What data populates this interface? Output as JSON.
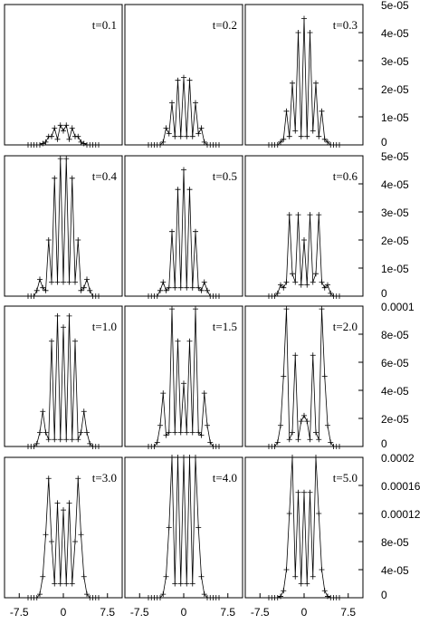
{
  "chart_data": [
    {
      "type": "line",
      "annotation": "t=0.1",
      "x": [
        -6,
        -5.5,
        -5,
        -4.5,
        -4,
        -3.5,
        -3,
        -2.5,
        -2,
        -1.5,
        -1,
        -0.5,
        0,
        0.5,
        1,
        1.5,
        2,
        2.5,
        3,
        3.5,
        4,
        4.5,
        5,
        5.5,
        6
      ],
      "values": [
        0,
        0,
        0,
        0,
        0,
        5e-07,
        1e-06,
        3e-06,
        3e-06,
        6e-06,
        2e-06,
        7e-06,
        5e-06,
        7e-06,
        2e-06,
        6e-06,
        3e-06,
        3e-06,
        1e-06,
        5e-07,
        0,
        0,
        0,
        0,
        0
      ],
      "xlim": [
        -10,
        10
      ],
      "ylim": [
        0,
        5e-05
      ]
    },
    {
      "type": "line",
      "annotation": "t=0.2",
      "x": [
        -6,
        -5.5,
        -5,
        -4.5,
        -4,
        -3.5,
        -3,
        -2.5,
        -2,
        -1.5,
        -1,
        -0.5,
        0,
        0.5,
        1,
        1.5,
        2,
        2.5,
        3,
        3.5,
        4,
        4.5,
        5,
        5.5,
        6
      ],
      "values": [
        0,
        0,
        0,
        0,
        0,
        1e-06,
        6e-06,
        4e-06,
        1.5e-05,
        3e-06,
        2.3e-05,
        3e-06,
        2.4e-05,
        3e-06,
        2.3e-05,
        3e-06,
        1.5e-05,
        4e-06,
        6e-06,
        1e-06,
        0,
        0,
        0,
        0,
        0
      ],
      "xlim": [
        -10,
        10
      ],
      "ylim": [
        0,
        5e-05
      ]
    },
    {
      "type": "line",
      "annotation": "t=0.3",
      "x": [
        -6,
        -5.5,
        -5,
        -4.5,
        -4,
        -3.5,
        -3,
        -2.5,
        -2,
        -1.5,
        -1,
        -0.5,
        0,
        0.5,
        1,
        1.5,
        2,
        2.5,
        3,
        3.5,
        4,
        4.5,
        5,
        5.5,
        6
      ],
      "values": [
        0,
        0,
        0,
        0,
        1e-06,
        2e-06,
        1.2e-05,
        3e-06,
        2.2e-05,
        5e-06,
        4e-05,
        3e-06,
        4.5e-05,
        3e-06,
        4e-05,
        5e-06,
        2.2e-05,
        3e-06,
        1.2e-05,
        2e-06,
        1e-06,
        0,
        0,
        0,
        0
      ],
      "xlim": [
        -10,
        10
      ],
      "ylim": [
        0,
        5e-05
      ],
      "yticks": [
        0,
        {
          "value": 1e-05,
          "label": "1e-05"
        },
        {
          "value": 2e-05,
          "label": "2e-05"
        },
        {
          "value": 3e-05,
          "label": "3e-05"
        },
        {
          "value": 4e-05,
          "label": "4e-05"
        },
        {
          "value": 5e-05,
          "label": "5e-05"
        }
      ]
    },
    {
      "type": "line",
      "annotation": "t=0.4",
      "x": [
        -6,
        -5.5,
        -5,
        -4.5,
        -4,
        -3.5,
        -3,
        -2.5,
        -2,
        -1.5,
        -1,
        -0.5,
        0,
        0.5,
        1,
        1.5,
        2,
        2.5,
        3,
        3.5,
        4,
        4.5,
        5,
        5.5,
        6
      ],
      "values": [
        0,
        0,
        0,
        2e-06,
        6e-06,
        3e-06,
        2e-06,
        2e-05,
        5e-06,
        4.2e-05,
        5e-06,
        4.9e-05,
        5e-06,
        4.9e-05,
        5e-06,
        4.2e-05,
        5e-06,
        2e-05,
        2e-06,
        3e-06,
        6e-06,
        2e-06,
        0,
        0,
        0
      ],
      "xlim": [
        -10,
        10
      ],
      "ylim": [
        0,
        5e-05
      ]
    },
    {
      "type": "line",
      "annotation": "t=0.5",
      "x": [
        -6,
        -5.5,
        -5,
        -4.5,
        -4,
        -3.5,
        -3,
        -2.5,
        -2,
        -1.5,
        -1,
        -0.5,
        0,
        0.5,
        1,
        1.5,
        2,
        2.5,
        3,
        3.5,
        4,
        4.5,
        5,
        5.5,
        6
      ],
      "values": [
        0,
        0,
        0,
        0,
        2e-06,
        5e-06,
        2e-06,
        3e-06,
        2.3e-05,
        3e-06,
        3.8e-05,
        3e-06,
        4.5e-05,
        3e-06,
        3.8e-05,
        3e-06,
        2.3e-05,
        3e-06,
        2e-06,
        5e-06,
        2e-06,
        0,
        0,
        0,
        0
      ],
      "xlim": [
        -10,
        10
      ],
      "ylim": [
        0,
        5e-05
      ]
    },
    {
      "type": "line",
      "annotation": "t=0.6",
      "x": [
        -6,
        -5.5,
        -5,
        -4.5,
        -4,
        -3.5,
        -3,
        -2.5,
        -2,
        -1.5,
        -1,
        -0.5,
        0,
        0.5,
        1,
        1.5,
        2,
        2.5,
        3,
        3.5,
        4,
        4.5,
        5,
        5.5,
        6
      ],
      "values": [
        0,
        0,
        0,
        1e-06,
        4e-06,
        3e-06,
        5e-06,
        2.9e-05,
        8e-06,
        5e-06,
        2.9e-05,
        4e-06,
        2e-05,
        4e-06,
        2.9e-05,
        5e-06,
        8e-06,
        2.9e-05,
        5e-06,
        3e-06,
        4e-06,
        1e-06,
        0,
        0,
        0
      ],
      "xlim": [
        -10,
        10
      ],
      "ylim": [
        0,
        5e-05
      ],
      "yticks": [
        0,
        {
          "value": 1e-05,
          "label": "1e-05"
        },
        {
          "value": 2e-05,
          "label": "2e-05"
        },
        {
          "value": 3e-05,
          "label": "3e-05"
        },
        {
          "value": 4e-05,
          "label": "4e-05"
        },
        {
          "value": 5e-05,
          "label": "5e-05"
        }
      ]
    },
    {
      "type": "line",
      "annotation": "t=1.0",
      "x": [
        -6,
        -5.5,
        -5,
        -4.5,
        -4,
        -3.5,
        -3,
        -2.5,
        -2,
        -1.5,
        -1,
        -0.5,
        0,
        0.5,
        1,
        1.5,
        2,
        2.5,
        3,
        3.5,
        4,
        4.5,
        5,
        5.5,
        6
      ],
      "values": [
        0,
        0,
        0,
        2e-06,
        1e-05,
        2.5e-05,
        1e-05,
        5e-06,
        7.5e-05,
        5e-06,
        9.3e-05,
        5e-06,
        8.5e-05,
        5e-06,
        9.3e-05,
        5e-06,
        7.5e-05,
        5e-06,
        1e-05,
        2.5e-05,
        1e-05,
        2e-06,
        0,
        0,
        0
      ],
      "xlim": [
        -10,
        10
      ],
      "ylim": [
        0,
        0.0001
      ]
    },
    {
      "type": "line",
      "annotation": "t=1.5",
      "x": [
        -6,
        -5.5,
        -5,
        -4.5,
        -4,
        -3.5,
        -3,
        -2.5,
        -2,
        -1.5,
        -1,
        -0.5,
        0,
        0.5,
        1,
        1.5,
        2,
        2.5,
        3,
        3.5,
        4,
        4.5,
        5,
        5.5,
        6
      ],
      "values": [
        0,
        0,
        0,
        3e-06,
        1.5e-05,
        3.8e-05,
        8e-06,
        1e-05,
        9.8e-05,
        1e-05,
        7.5e-05,
        1e-05,
        4.5e-05,
        1e-05,
        7.5e-05,
        1e-05,
        9.8e-05,
        1e-05,
        8e-06,
        3.8e-05,
        1.5e-05,
        3e-06,
        0,
        0,
        0
      ],
      "xlim": [
        -10,
        10
      ],
      "ylim": [
        0,
        0.0001
      ]
    },
    {
      "type": "line",
      "annotation": "t=2.0",
      "x": [
        -6,
        -5.5,
        -5,
        -4.5,
        -4,
        -3.5,
        -3,
        -2.5,
        -2,
        -1.5,
        -1,
        -0.5,
        0,
        0.5,
        1,
        1.5,
        2,
        2.5,
        3,
        3.5,
        4,
        4.5,
        5,
        5.5,
        6
      ],
      "values": [
        0,
        0,
        0,
        3e-06,
        1.5e-05,
        5e-05,
        9.8e-05,
        5e-06,
        1e-05,
        6.5e-05,
        5e-06,
        1.8e-05,
        2.2e-05,
        1.8e-05,
        5e-06,
        6.5e-05,
        1e-05,
        5e-06,
        9.8e-05,
        5e-05,
        1.5e-05,
        3e-06,
        0,
        0,
        0
      ],
      "xlim": [
        -10,
        10
      ],
      "ylim": [
        0,
        0.0001
      ],
      "yticks": [
        0,
        {
          "value": 2e-05,
          "label": "2e-05"
        },
        {
          "value": 4e-05,
          "label": "4e-05"
        },
        {
          "value": 6e-05,
          "label": "6e-05"
        },
        {
          "value": 8e-05,
          "label": "8e-05"
        },
        0.0001
      ]
    },
    {
      "type": "line",
      "annotation": "t=3.0",
      "x": [
        -6,
        -5.5,
        -5,
        -4.5,
        -4,
        -3.5,
        -3,
        -2.5,
        -2,
        -1.5,
        -1,
        -0.5,
        0,
        0.5,
        1,
        1.5,
        2,
        2.5,
        3,
        3.5,
        4,
        4.5,
        5,
        5.5,
        6
      ],
      "values": [
        0,
        0,
        0,
        0,
        5e-06,
        3e-05,
        9e-05,
        0.00017,
        8e-05,
        2e-05,
        0.000135,
        2e-05,
        0.000125,
        2e-05,
        0.000135,
        2e-05,
        8e-05,
        0.00017,
        9e-05,
        3e-05,
        5e-06,
        0,
        0,
        0,
        0
      ],
      "xlim": [
        -10,
        10
      ],
      "ylim": [
        0,
        0.0002
      ],
      "xticks": [
        -7.5,
        0,
        7.5
      ]
    },
    {
      "type": "line",
      "annotation": "t=4.0",
      "x": [
        -6,
        -5.5,
        -5,
        -4.5,
        -4,
        -3.5,
        -3,
        -2.5,
        -2,
        -1.5,
        -1,
        -0.5,
        0,
        0.5,
        1,
        1.5,
        2,
        2.5,
        3,
        3.5,
        4,
        4.5,
        5,
        5.5,
        6
      ],
      "values": [
        0,
        0,
        0,
        0,
        0,
        5e-06,
        3e-05,
        0.0001,
        0.0002,
        2e-05,
        0.0002,
        2e-05,
        0.0002,
        2e-05,
        0.0002,
        2e-05,
        0.0002,
        0.0001,
        3e-05,
        5e-06,
        0,
        0,
        0,
        0,
        0
      ],
      "xlim": [
        -10,
        10
      ],
      "ylim": [
        0,
        0.0002
      ],
      "xticks": [
        -7.5,
        0,
        7.5
      ]
    },
    {
      "type": "line",
      "annotation": "t=5.0",
      "x": [
        -6,
        -5.5,
        -5,
        -4.5,
        -4,
        -3.5,
        -3,
        -2.5,
        -2,
        -1.5,
        -1,
        -0.5,
        0,
        0.5,
        1,
        1.5,
        2,
        2.5,
        3,
        3.5,
        4,
        4.5,
        5,
        5.5,
        6
      ],
      "values": [
        0,
        0,
        0,
        0,
        2e-06,
        1e-05,
        4e-05,
        0.00012,
        0.0002,
        3e-05,
        0.00015,
        2e-05,
        0.00015,
        2e-05,
        0.00015,
        3e-05,
        0.0002,
        0.00012,
        4e-05,
        1e-05,
        2e-06,
        0,
        0,
        0,
        0
      ],
      "xlim": [
        -10,
        10
      ],
      "ylim": [
        0,
        0.0002
      ],
      "xticks": [
        -7.5,
        0,
        7.5
      ],
      "yticks": [
        0,
        {
          "value": 4e-05,
          "label": "4e-05"
        },
        {
          "value": 8e-05,
          "label": "8e-05"
        },
        0.00012,
        0.00016,
        0.0002
      ]
    }
  ]
}
